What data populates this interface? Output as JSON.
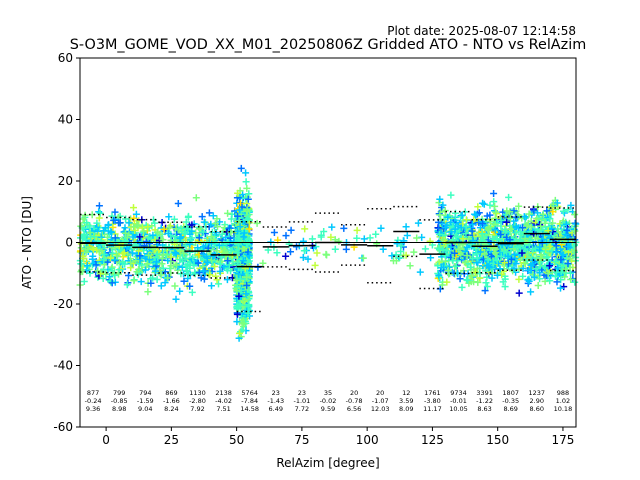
{
  "chart_data": {
    "type": "scatter",
    "title": "S-O3M_GOME_VOD_XX_M01_20250806Z Gridded ATO - NTO vs RelAzim",
    "plot_date": "Plot date: 2025-08-07 12:14:58",
    "xlabel": "RelAzim [degree]",
    "ylabel": "ATO - NTO [DU]",
    "xlim": [
      -10,
      180
    ],
    "ylim": [
      -60,
      60
    ],
    "xticks": [
      0,
      25,
      50,
      75,
      100,
      125,
      150,
      175
    ],
    "yticks": [
      -60,
      -40,
      -20,
      0,
      20,
      40,
      60
    ],
    "grid": false,
    "marker": "+",
    "colors": {
      "zero_line": "#000000",
      "mean_line": "#000000",
      "std_line": "#000000",
      "point_palette": [
        "#0000cd",
        "#0072ff",
        "#00c8ff",
        "#3cffc0",
        "#7cff7c",
        "#c0ff3c",
        "#ffe000"
      ]
    },
    "bins": [
      {
        "x_start": -10,
        "x_end": 0,
        "count": "877",
        "mean": -0.24,
        "std": 9.36,
        "mean_label": "-0.24",
        "std_label": "9.36"
      },
      {
        "x_start": 0,
        "x_end": 10,
        "count": "799",
        "mean": -0.85,
        "std": 8.98,
        "mean_label": "-0.85",
        "std_label": "8.98"
      },
      {
        "x_start": 10,
        "x_end": 20,
        "count": "794",
        "mean": -1.59,
        "std": 9.04,
        "mean_label": "-1.59",
        "std_label": "9.04"
      },
      {
        "x_start": 20,
        "x_end": 30,
        "count": "869",
        "mean": -1.66,
        "std": 8.24,
        "mean_label": "-1.66",
        "std_label": "8.24"
      },
      {
        "x_start": 30,
        "x_end": 40,
        "count": "1130",
        "mean": -2.8,
        "std": 7.92,
        "mean_label": "-2.80",
        "std_label": "7.92"
      },
      {
        "x_start": 40,
        "x_end": 50,
        "count": "2138",
        "mean": -4.02,
        "std": 7.51,
        "mean_label": "-4.02",
        "std_label": "7.51"
      },
      {
        "x_start": 50,
        "x_end": 60,
        "count": "5764",
        "mean": -7.84,
        "std": 14.58,
        "mean_label": "-7.84",
        "std_label": "14.58"
      },
      {
        "x_start": 60,
        "x_end": 70,
        "count": "23",
        "mean": -1.43,
        "std": 6.49,
        "mean_label": "-1.43",
        "std_label": "6.49"
      },
      {
        "x_start": 70,
        "x_end": 80,
        "count": "23",
        "mean": -1.01,
        "std": 7.72,
        "mean_label": "-1.01",
        "std_label": "7.72"
      },
      {
        "x_start": 80,
        "x_end": 90,
        "count": "35",
        "mean": -0.02,
        "std": 9.59,
        "mean_label": "-0.02",
        "std_label": "9.59"
      },
      {
        "x_start": 90,
        "x_end": 100,
        "count": "20",
        "mean": -0.78,
        "std": 6.56,
        "mean_label": "-0.78",
        "std_label": "6.56"
      },
      {
        "x_start": 100,
        "x_end": 110,
        "count": "20",
        "mean": -1.07,
        "std": 12.03,
        "mean_label": "-1.07",
        "std_label": "12.03"
      },
      {
        "x_start": 110,
        "x_end": 120,
        "count": "12",
        "mean": 3.59,
        "std": 8.09,
        "mean_label": "3.59",
        "std_label": "8.09"
      },
      {
        "x_start": 120,
        "x_end": 130,
        "count": "1761",
        "mean": -3.8,
        "std": 11.17,
        "mean_label": "-3.80",
        "std_label": "11.17"
      },
      {
        "x_start": 130,
        "x_end": 140,
        "count": "9734",
        "mean": -0.01,
        "std": 10.05,
        "mean_label": "-0.01",
        "std_label": "10.05"
      },
      {
        "x_start": 140,
        "x_end": 150,
        "count": "3391",
        "mean": -1.22,
        "std": 8.63,
        "mean_label": "-1.22",
        "std_label": "8.63"
      },
      {
        "x_start": 150,
        "x_end": 160,
        "count": "1807",
        "mean": -0.35,
        "std": 8.69,
        "mean_label": "-0.35",
        "std_label": "8.69"
      },
      {
        "x_start": 160,
        "x_end": 170,
        "count": "1237",
        "mean": 2.9,
        "std": 8.6,
        "mean_label": "2.90",
        "std_label": "8.60"
      },
      {
        "x_start": 170,
        "x_end": 180,
        "count": "988",
        "mean": 1.02,
        "std": 10.18,
        "mean_label": "1.02",
        "std_label": "10.18"
      }
    ],
    "point_clusters": [
      {
        "x_range": [
          -10,
          50
        ],
        "y_center": -2,
        "y_spread": 10,
        "density": 900
      },
      {
        "x_range": [
          50,
          55
        ],
        "y_center": -5,
        "y_spread": 18,
        "density": 700
      },
      {
        "x_range": [
          55,
          125
        ],
        "y_center": -1,
        "y_spread": 8,
        "density": 80
      },
      {
        "x_range": [
          127,
          180
        ],
        "y_center": -1,
        "y_spread": 11,
        "density": 1200
      }
    ]
  }
}
